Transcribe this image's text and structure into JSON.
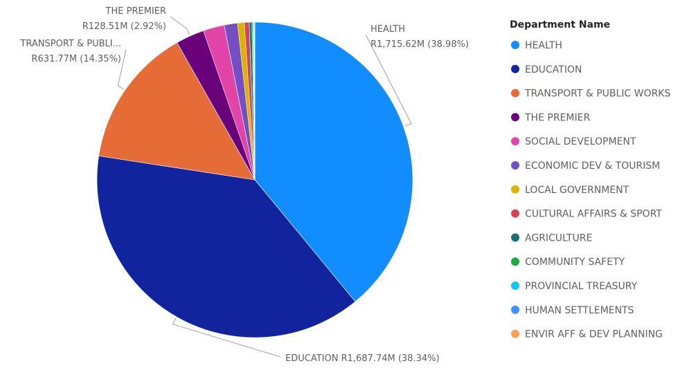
{
  "chart_data": {
    "type": "pie",
    "legend_title": "Department Name",
    "legend_position": "right",
    "slices": [
      {
        "name": "HEALTH",
        "value": 1715.62,
        "percent": 38.98,
        "color": "#118DFF",
        "label_line1": "HEALTH",
        "label_line2": "R1,715.62M (38.98%)"
      },
      {
        "name": "EDUCATION",
        "value": 1687.74,
        "percent": 38.34,
        "color": "#12239E",
        "label_line1": "EDUCATION R1,687.74M (38.34%)"
      },
      {
        "name": "TRANSPORT & PUBLIC WORKS",
        "value": 631.77,
        "percent": 14.35,
        "color": "#E66C37",
        "label_line1": "TRANSPORT & PUBLI...",
        "label_line2": "R631.77M (14.35%)"
      },
      {
        "name": "THE PREMIER",
        "value": 128.51,
        "percent": 2.92,
        "color": "#6B007B",
        "label_line1": "THE PREMIER",
        "label_line2": "R128.51M (2.92%)"
      },
      {
        "name": "SOCIAL DEVELOPMENT",
        "value": 95,
        "percent": 2.16,
        "color": "#E044A7"
      },
      {
        "name": "ECONOMIC DEV & TOURISM",
        "value": 60,
        "percent": 1.36,
        "color": "#744EC2"
      },
      {
        "name": "LOCAL GOVERNMENT",
        "value": 30,
        "percent": 0.68,
        "color": "#D9B300"
      },
      {
        "name": "CULTURAL AFFAIRS & SPORT",
        "value": 22,
        "percent": 0.5,
        "color": "#D64550"
      },
      {
        "name": "AGRICULTURE",
        "value": 12,
        "percent": 0.27,
        "color": "#197278"
      },
      {
        "name": "COMMUNITY SAFETY",
        "value": 5,
        "percent": 0.11,
        "color": "#1AAB40"
      },
      {
        "name": "PROVINCIAL TREASURY",
        "value": 3,
        "percent": 0.07,
        "color": "#15C6F4"
      },
      {
        "name": "HUMAN SETTLEMENTS",
        "value": 3,
        "percent": 0.07,
        "color": "#4092FF"
      },
      {
        "name": "ENVIR AFF & DEV PLANNING",
        "value": 2,
        "percent": 0.05,
        "color": "#FFA058"
      }
    ]
  }
}
